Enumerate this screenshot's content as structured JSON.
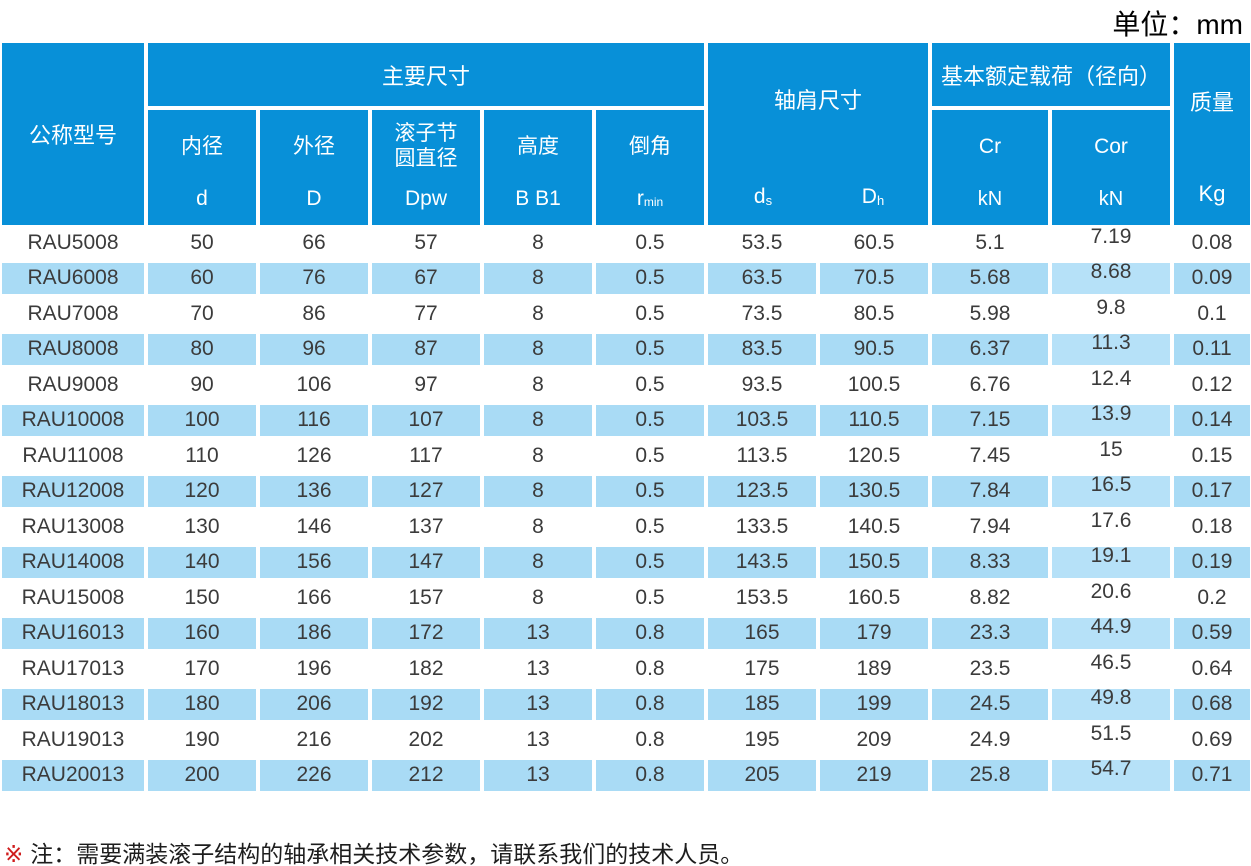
{
  "unit_label": "单位：mm",
  "table": {
    "headers": {
      "model": "公称型号",
      "main_dims": "主要尺寸",
      "bore_label": "内径",
      "bore_sym": "d",
      "outer_label": "外径",
      "outer_sym": "D",
      "pitch_line1": "滚子节",
      "pitch_line2": "圆直径",
      "pitch_sym": "Dpw",
      "height_label": "高度",
      "height_sym": "B B1",
      "chamfer_label": "倒角",
      "chamfer_sym": "r",
      "chamfer_sub": "min",
      "shoulder": "轴肩尺寸",
      "shoulder_d_sym": "d",
      "shoulder_d_sub": "s",
      "shoulder_D_sym": "D",
      "shoulder_D_sub": "h",
      "load": "基本额定载荷（径向）",
      "cr_label": "Cr",
      "cr_unit": "kN",
      "cor_label": "Cor",
      "cor_unit": "kN",
      "mass_label": "质量",
      "mass_unit": "Kg"
    },
    "rows": [
      [
        "RAU5008",
        "50",
        "66",
        "57",
        "8",
        "0.5",
        "53.5",
        "60.5",
        "5.1",
        "7.19",
        "0.08"
      ],
      [
        "RAU6008",
        "60",
        "76",
        "67",
        "8",
        "0.5",
        "63.5",
        "70.5",
        "5.68",
        "8.68",
        "0.09"
      ],
      [
        "RAU7008",
        "70",
        "86",
        "77",
        "8",
        "0.5",
        "73.5",
        "80.5",
        "5.98",
        "9.8",
        "0.1"
      ],
      [
        "RAU8008",
        "80",
        "96",
        "87",
        "8",
        "0.5",
        "83.5",
        "90.5",
        "6.37",
        "11.3",
        "0.11"
      ],
      [
        "RAU9008",
        "90",
        "106",
        "97",
        "8",
        "0.5",
        "93.5",
        "100.5",
        "6.76",
        "12.4",
        "0.12"
      ],
      [
        "RAU10008",
        "100",
        "116",
        "107",
        "8",
        "0.5",
        "103.5",
        "110.5",
        "7.15",
        "13.9",
        "0.14"
      ],
      [
        "RAU11008",
        "110",
        "126",
        "117",
        "8",
        "0.5",
        "113.5",
        "120.5",
        "7.45",
        "15",
        "0.15"
      ],
      [
        "RAU12008",
        "120",
        "136",
        "127",
        "8",
        "0.5",
        "123.5",
        "130.5",
        "7.84",
        "16.5",
        "0.17"
      ],
      [
        "RAU13008",
        "130",
        "146",
        "137",
        "8",
        "0.5",
        "133.5",
        "140.5",
        "7.94",
        "17.6",
        "0.18"
      ],
      [
        "RAU14008",
        "140",
        "156",
        "147",
        "8",
        "0.5",
        "143.5",
        "150.5",
        "8.33",
        "19.1",
        "0.19"
      ],
      [
        "RAU15008",
        "150",
        "166",
        "157",
        "8",
        "0.5",
        "153.5",
        "160.5",
        "8.82",
        "20.6",
        "0.2"
      ],
      [
        "RAU16013",
        "160",
        "186",
        "172",
        "13",
        "0.8",
        "165",
        "179",
        "23.3",
        "44.9",
        "0.59"
      ],
      [
        "RAU17013",
        "170",
        "196",
        "182",
        "13",
        "0.8",
        "175",
        "189",
        "23.5",
        "46.5",
        "0.64"
      ],
      [
        "RAU18013",
        "180",
        "206",
        "192",
        "13",
        "0.8",
        "185",
        "199",
        "24.5",
        "49.8",
        "0.68"
      ],
      [
        "RAU19013",
        "190",
        "216",
        "202",
        "13",
        "0.8",
        "195",
        "209",
        "24.9",
        "51.5",
        "0.69"
      ],
      [
        "RAU20013",
        "200",
        "226",
        "212",
        "13",
        "0.8",
        "205",
        "219",
        "25.8",
        "54.7",
        "0.71"
      ]
    ]
  },
  "note": {
    "marker": "※",
    "text": "注：需要满装滚子结构的轴承相关技术参数，请联系我们的技术人员。"
  },
  "colors": {
    "header_blue": "#0890d8",
    "row_blue": "#a9dbf5",
    "row_blue_cor": "#b6e1f8",
    "body_text": "#3b3b3b",
    "note_marker_red": "#cf1d1d"
  }
}
